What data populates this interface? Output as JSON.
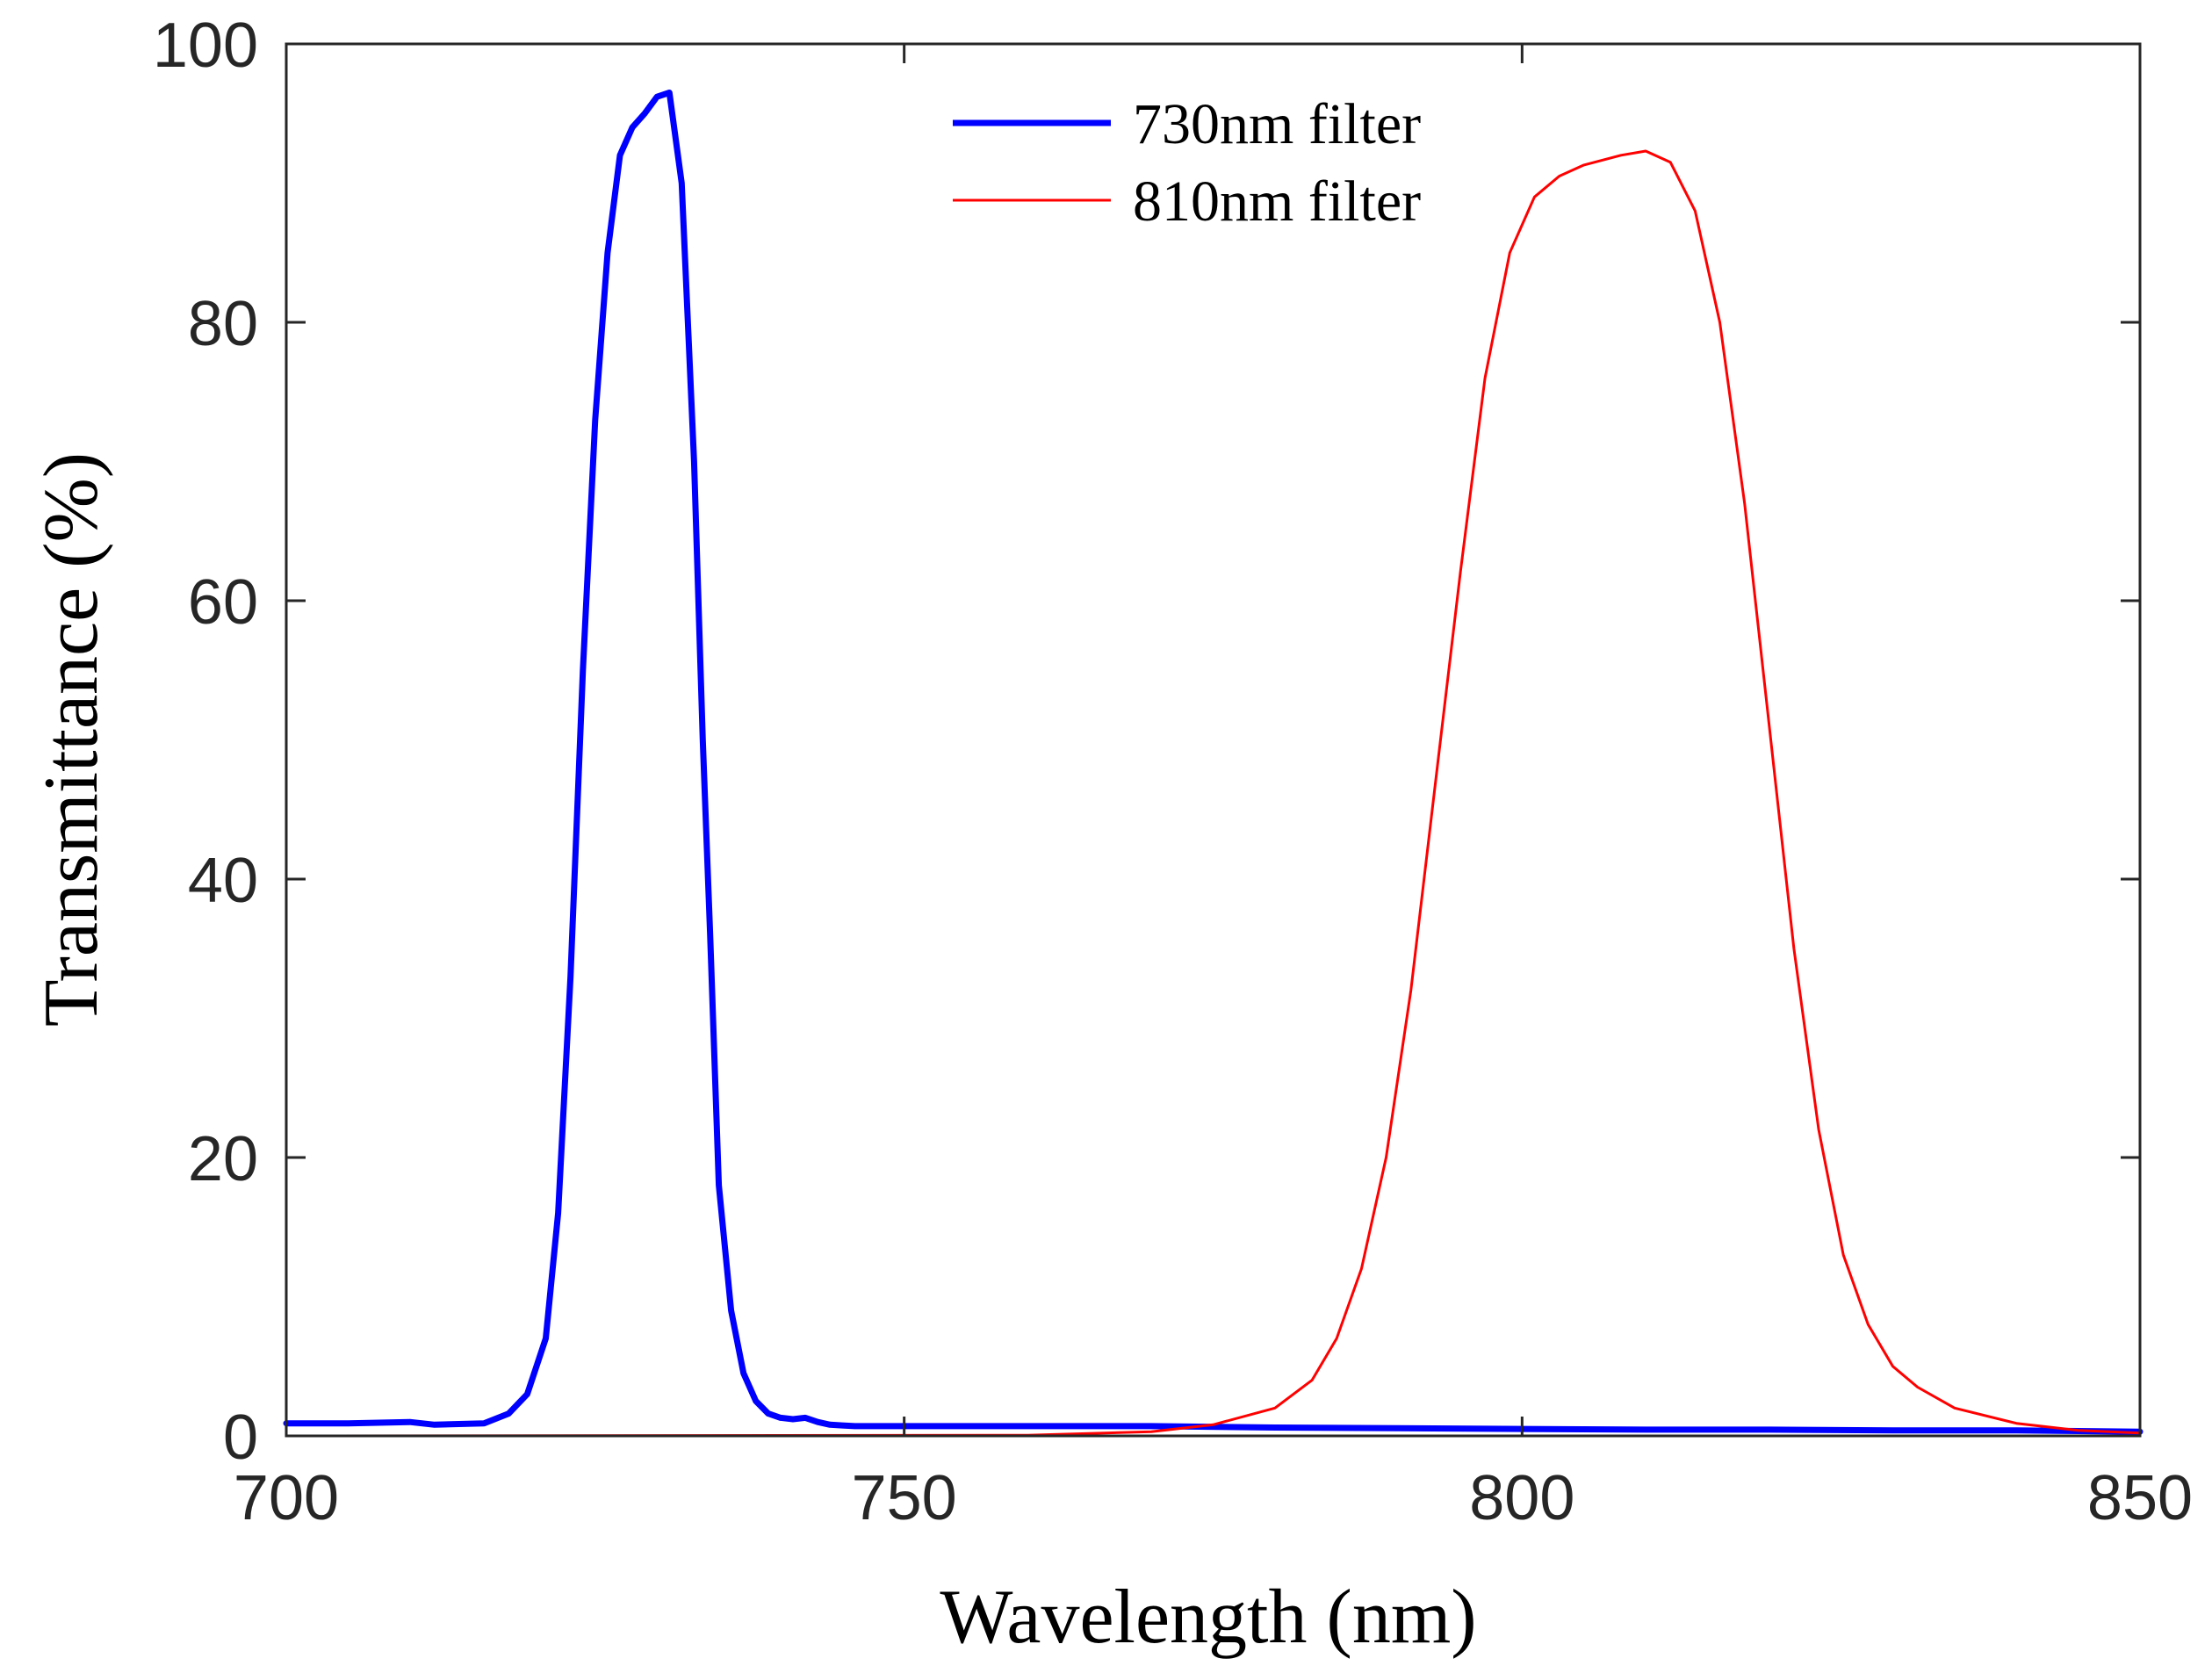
{
  "chart_data": {
    "type": "line",
    "title": "",
    "xlabel": "Wavelength (nm)",
    "ylabel": "Transmittance (%)",
    "xlim": [
      700,
      850
    ],
    "ylim": [
      0,
      100
    ],
    "xticks": [
      700,
      750,
      800,
      850
    ],
    "yticks": [
      0,
      20,
      40,
      60,
      80,
      100
    ],
    "xtick_labels": [
      "700",
      "750",
      "800",
      "850"
    ],
    "ytick_labels": [
      "0",
      "20",
      "40",
      "60",
      "80",
      "100"
    ],
    "grid": false,
    "legend_position": "top-center",
    "series": [
      {
        "name": "730nm filter",
        "color": "#0000ff",
        "x": [
          700,
          705,
          710,
          712,
          716,
          718,
          719.5,
          721,
          722,
          723,
          724,
          725,
          726,
          727,
          728,
          729,
          730,
          731,
          732,
          733,
          733.7,
          734.3,
          735,
          736,
          737,
          738,
          739,
          740,
          741,
          742,
          743,
          744,
          745,
          746,
          747,
          748,
          750,
          760,
          770,
          780,
          790,
          800,
          810,
          820,
          830,
          840,
          850
        ],
        "y": [
          0.9,
          0.9,
          1.0,
          0.8,
          0.9,
          1.6,
          3,
          7,
          16,
          33,
          55,
          73,
          85,
          92,
          94,
          95,
          96.2,
          96.5,
          90,
          70,
          50,
          36,
          18,
          9,
          4.5,
          2.5,
          1.6,
          1.3,
          1.2,
          1.3,
          1.0,
          0.8,
          0.75,
          0.7,
          0.7,
          0.7,
          0.7,
          0.7,
          0.7,
          0.6,
          0.55,
          0.5,
          0.45,
          0.45,
          0.4,
          0.4,
          0.3
        ]
      },
      {
        "name": "810nm filter",
        "color": "#ff0000",
        "x": [
          700,
          760,
          770,
          775,
          780,
          783,
          785,
          787,
          789,
          791,
          793,
          795,
          797,
          799,
          801,
          803,
          805,
          808,
          810,
          812,
          814,
          816,
          818,
          820,
          822,
          824,
          826,
          828,
          830,
          832,
          835,
          840,
          845,
          850
        ],
        "y": [
          0,
          0.05,
          0.3,
          0.8,
          2,
          4,
          7,
          12,
          20,
          32,
          47,
          62,
          76,
          85,
          89,
          90.5,
          91.3,
          92,
          92.3,
          91.5,
          88,
          80,
          67,
          51,
          35,
          22,
          13,
          8,
          5,
          3.5,
          2,
          0.9,
          0.4,
          0.2
        ]
      }
    ]
  }
}
